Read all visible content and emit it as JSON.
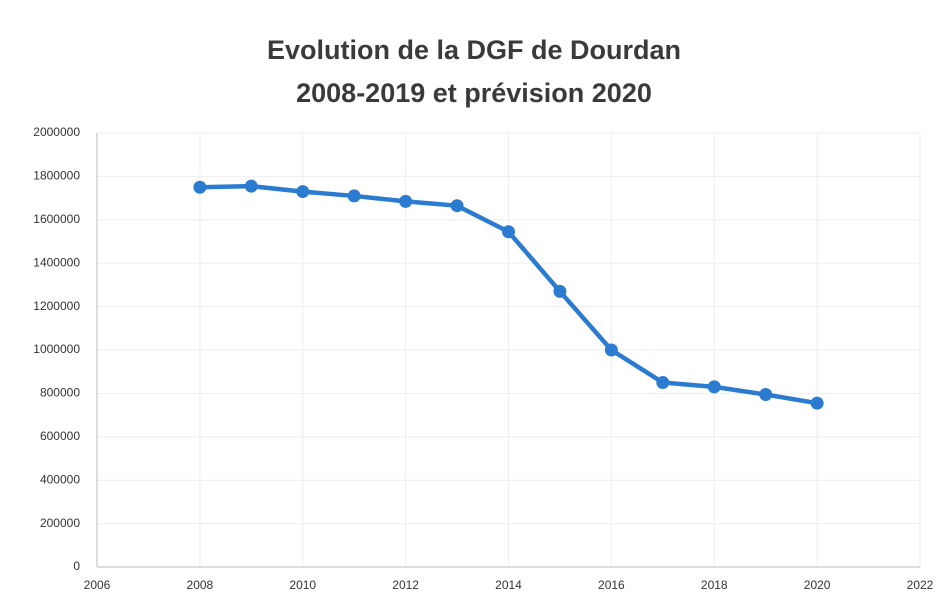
{
  "chart_data": {
    "type": "line",
    "title": [
      "Evolution de la DGF de Dourdan",
      "2008-2019 et prévision 2020"
    ],
    "x": [
      2008,
      2009,
      2010,
      2011,
      2012,
      2013,
      2014,
      2015,
      2016,
      2017,
      2018,
      2019,
      2020
    ],
    "series": [
      {
        "name": "DGF",
        "color": "#2b7bd0",
        "values": [
          1750000,
          1755000,
          1730000,
          1710000,
          1685000,
          1665000,
          1545000,
          1270000,
          1000000,
          850000,
          830000,
          795000,
          755000
        ]
      }
    ],
    "xlim": [
      2006,
      2022
    ],
    "xticks": [
      2006,
      2008,
      2010,
      2012,
      2014,
      2016,
      2018,
      2020,
      2022
    ],
    "ylim": [
      0,
      2000000
    ],
    "yticks": [
      0,
      200000,
      400000,
      600000,
      800000,
      1000000,
      1200000,
      1400000,
      1600000,
      1800000,
      2000000
    ],
    "grid": true
  }
}
